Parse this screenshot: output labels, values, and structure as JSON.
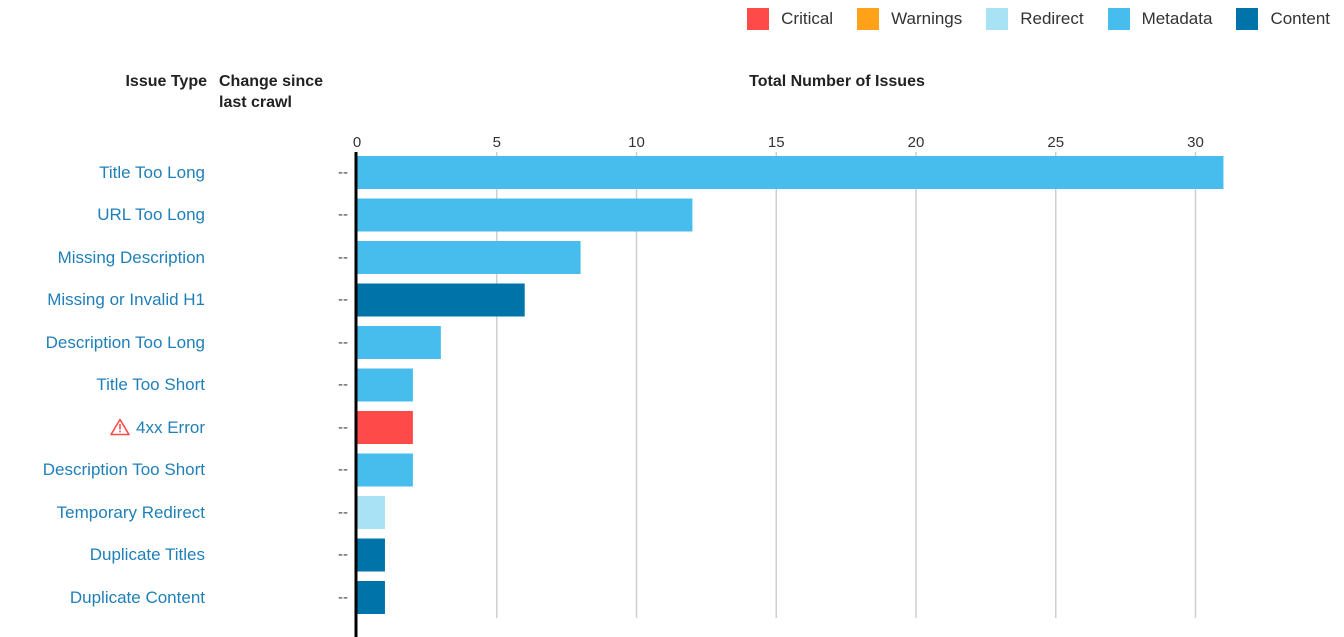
{
  "legend": [
    {
      "label": "Critical",
      "color": "#ff4a4a"
    },
    {
      "label": "Warnings",
      "color": "#ffa21a"
    },
    {
      "label": "Redirect",
      "color": "#a9e1f5"
    },
    {
      "label": "Metadata",
      "color": "#46bdec"
    },
    {
      "label": "Content",
      "color": "#0074a8"
    }
  ],
  "headers": {
    "issue_type": "Issue Type",
    "change_line1": "Change since",
    "change_line2": "last crawl",
    "total": "Total Number of Issues"
  },
  "chart_data": {
    "type": "bar",
    "orientation": "horizontal",
    "title": "Total Number of Issues",
    "xlim": [
      0,
      31
    ],
    "xticks": [
      0,
      5,
      10,
      15,
      20,
      25,
      30
    ],
    "grid": true,
    "legend_position": "top-right",
    "categories": [
      "Title Too Long",
      "URL Too Long",
      "Missing Description",
      "Missing or Invalid H1",
      "Description Too Long",
      "Title Too Short",
      "4xx Error",
      "Description Too Short",
      "Temporary Redirect",
      "Duplicate Titles",
      "Duplicate Content"
    ],
    "values": [
      31,
      12,
      8,
      6,
      3,
      2,
      2,
      2,
      1,
      1,
      1
    ],
    "bar_groups": [
      "Metadata",
      "Metadata",
      "Metadata",
      "Content",
      "Metadata",
      "Metadata",
      "Critical",
      "Metadata",
      "Redirect",
      "Content",
      "Content"
    ],
    "changes": [
      "--",
      "--",
      "--",
      "--",
      "--",
      "--",
      "--",
      "--",
      "--",
      "--",
      "--"
    ],
    "icons": [
      "",
      "",
      "",
      "",
      "",
      "",
      "warning-triangle-icon",
      "",
      "",
      "",
      ""
    ]
  }
}
